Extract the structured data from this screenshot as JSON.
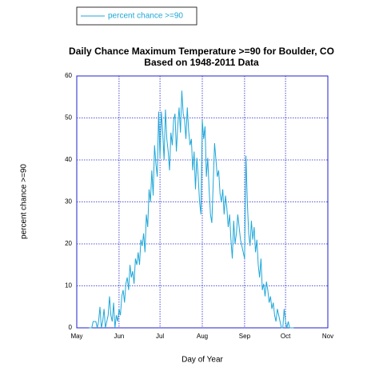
{
  "chart_data": {
    "type": "line",
    "title": "Daily Chance Maximum Temperature >=90 for Boulder, CO",
    "subtitle": "Based on 1948-2011 Data",
    "x_label": "Day of Year",
    "y_label": "percent chance >=90",
    "legend": "top-left",
    "grid": true,
    "xlim": [
      121,
      305
    ],
    "ylim": [
      0,
      60
    ],
    "xticks": [
      {
        "value": 121,
        "label": "May"
      },
      {
        "value": 152,
        "label": "Jun"
      },
      {
        "value": 182,
        "label": "Jul"
      },
      {
        "value": 213,
        "label": "Aug"
      },
      {
        "value": 244,
        "label": "Sep"
      },
      {
        "value": 274,
        "label": "Oct"
      },
      {
        "value": 305,
        "label": "Nov"
      }
    ],
    "yticks": [
      0,
      10,
      20,
      30,
      40,
      50,
      60
    ],
    "x": [
      130,
      131,
      132,
      133,
      134,
      135,
      136,
      137,
      138,
      139,
      140,
      141,
      142,
      143,
      144,
      145,
      146,
      147,
      148,
      149,
      150,
      151,
      152,
      153,
      154,
      155,
      156,
      157,
      158,
      159,
      160,
      161,
      162,
      163,
      164,
      165,
      166,
      167,
      168,
      169,
      170,
      171,
      172,
      173,
      174,
      175,
      176,
      177,
      178,
      179,
      180,
      181,
      182,
      183,
      184,
      185,
      186,
      187,
      188,
      189,
      190,
      191,
      192,
      193,
      194,
      195,
      196,
      197,
      198,
      199,
      200,
      201,
      202,
      203,
      204,
      205,
      206,
      207,
      208,
      209,
      210,
      211,
      212,
      213,
      214,
      215,
      216,
      217,
      218,
      219,
      220,
      221,
      222,
      223,
      224,
      225,
      226,
      227,
      228,
      229,
      230,
      231,
      232,
      233,
      234,
      235,
      236,
      237,
      238,
      239,
      240,
      241,
      242,
      243,
      244,
      245,
      246,
      247,
      248,
      249,
      250,
      251,
      252,
      253,
      254,
      255,
      256,
      257,
      258,
      259,
      260,
      261,
      262,
      263,
      264,
      265,
      266,
      267,
      268,
      269,
      270,
      271,
      272,
      273,
      274,
      275,
      276,
      277,
      278,
      279,
      280
    ],
    "series": [
      {
        "name": "percent chance >=90",
        "color": "#1ea7d8",
        "values": [
          0,
          0,
          0,
          1.5,
          1.5,
          1.5,
          0,
          1.5,
          5,
          0,
          1.5,
          4.5,
          0,
          1.5,
          3,
          7.5,
          3,
          1.5,
          6,
          0,
          3,
          1.5,
          4.5,
          3,
          7.5,
          9,
          6,
          10.5,
          12,
          9,
          15,
          12,
          13.5,
          10.5,
          16.5,
          15,
          18,
          15,
          21,
          19.5,
          22.5,
          18,
          27,
          24,
          33,
          30,
          37.5,
          31.5,
          43.5,
          39,
          36,
          51.5,
          40.5,
          51.5,
          46.5,
          40,
          52,
          45,
          42,
          37.5,
          46.5,
          43.5,
          49.5,
          51,
          42,
          48,
          52.5,
          46.5,
          56.5,
          51,
          49.5,
          45,
          52.5,
          47,
          43.5,
          45,
          37.5,
          42,
          33,
          40.5,
          36,
          30,
          27,
          49.5,
          45,
          48,
          36,
          40.5,
          33,
          27,
          25,
          34.5,
          44,
          40,
          36,
          37.5,
          32,
          30,
          33,
          27,
          31.5,
          28.5,
          24,
          27,
          21,
          16.5,
          25.5,
          20,
          22.5,
          27,
          24,
          21,
          19.5,
          18,
          16.5,
          41,
          30,
          22.5,
          19.5,
          25.5,
          21,
          24,
          18,
          21,
          15,
          12,
          16.5,
          9,
          10.5,
          7.5,
          11,
          9,
          6,
          7.5,
          4.5,
          6,
          3,
          1.5,
          4.5,
          3,
          1.5,
          0,
          0,
          4.5,
          1.5,
          0,
          1.5,
          0,
          0,
          0,
          0
        ]
      }
    ]
  }
}
